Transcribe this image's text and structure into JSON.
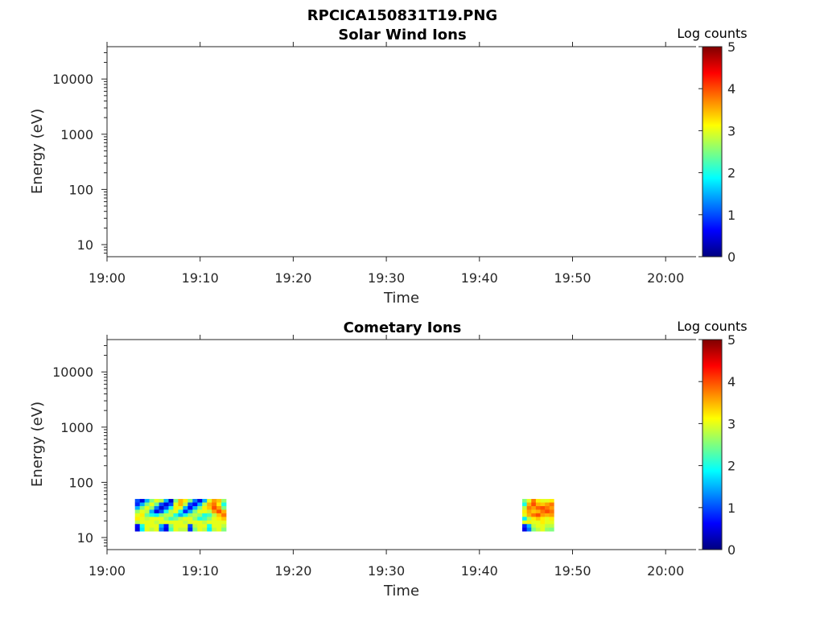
{
  "figure_title": "RPCICA150831T19.PNG",
  "colormap": [
    "#00007f",
    "#0000ff",
    "#007fff",
    "#00ffff",
    "#7fff7f",
    "#ffff00",
    "#ff7f00",
    "#ff0000",
    "#7f0000"
  ],
  "chart_data": [
    {
      "type": "heatmap",
      "title": "Solar Wind Ions",
      "xlabel": "Time",
      "ylabel": "Energy (eV)",
      "x_ticks": [
        "19:00",
        "19:10",
        "19:20",
        "19:30",
        "19:40",
        "19:50",
        "20:00"
      ],
      "y_ticks": [
        "10",
        "100",
        "1000",
        "10000"
      ],
      "y_scale": "log",
      "colorbar": {
        "label": "Log counts",
        "ticks": [
          "0",
          "1",
          "2",
          "3",
          "4",
          "5"
        ],
        "range": [
          0,
          5
        ]
      },
      "blocks": []
    },
    {
      "type": "heatmap",
      "title": "Cometary Ions",
      "xlabel": "Time",
      "ylabel": "Energy (eV)",
      "x_ticks": [
        "19:00",
        "19:10",
        "19:20",
        "19:30",
        "19:40",
        "19:50",
        "20:00"
      ],
      "y_ticks": [
        "10",
        "100",
        "1000",
        "10000"
      ],
      "y_scale": "log",
      "colorbar": {
        "label": "Log counts",
        "ticks": [
          "0",
          "1",
          "2",
          "3",
          "4",
          "5"
        ],
        "range": [
          0,
          5
        ]
      },
      "blocks": [
        {
          "t_start_min": 3.0,
          "t_end_min": 12.8,
          "energy_range_eV": [
            13,
            50
          ],
          "log_counts": [
            [
              1.0,
              0.5,
              1.5,
              2.5,
              3.0,
              2.8,
              1.5,
              0.4,
              2.5,
              3.5,
              3.2,
              2.5,
              1.2,
              0.5,
              1.5,
              3.0,
              3.6,
              3.4,
              2.6
            ],
            [
              0.8,
              1.5,
              2.5,
              3.0,
              2.4,
              1.0,
              0.5,
              1.0,
              3.0,
              3.5,
              2.8,
              1.0,
              0.6,
              1.5,
              2.8,
              3.5,
              3.8,
              3.2,
              2.0
            ],
            [
              1.5,
              2.5,
              3.0,
              2.6,
              1.2,
              0.4,
              1.0,
              2.0,
              3.2,
              3.0,
              1.5,
              0.6,
              1.5,
              2.5,
              3.2,
              3.4,
              4.0,
              3.6,
              2.5
            ],
            [
              2.6,
              3.0,
              2.8,
              1.5,
              0.5,
              1.0,
              2.0,
              2.8,
              3.0,
              2.0,
              0.8,
              1.5,
              2.5,
              3.0,
              3.0,
              2.8,
              3.6,
              4.0,
              3.5
            ],
            [
              3.0,
              3.2,
              2.4,
              2.0,
              1.8,
              2.5,
              2.8,
              2.8,
              2.0,
              1.5,
              2.0,
              2.6,
              2.8,
              2.6,
              2.0,
              2.2,
              2.8,
              3.4,
              3.8
            ],
            [
              3.2,
              3.0,
              2.8,
              3.0,
              3.0,
              3.0,
              2.6,
              2.2,
              2.4,
              2.8,
              3.0,
              3.0,
              2.6,
              2.0,
              2.2,
              2.6,
              3.0,
              3.2,
              3.4
            ],
            [
              2.8,
              3.0,
              3.0,
              3.0,
              2.8,
              3.0,
              3.0,
              3.0,
              3.0,
              3.0,
              2.8,
              3.0,
              3.0,
              3.0,
              2.8,
              3.0,
              3.0,
              3.0,
              3.0
            ],
            [
              0.6,
              2.0,
              3.0,
              3.0,
              3.0,
              1.5,
              0.7,
              2.5,
              3.0,
              3.0,
              3.0,
              1.0,
              2.8,
              3.0,
              3.0,
              2.0,
              3.0,
              3.0,
              2.8
            ],
            [
              0.5,
              1.8,
              3.0,
              2.8,
              3.0,
              1.2,
              0.5,
              2.2,
              3.0,
              2.8,
              2.8,
              0.8,
              2.5,
              3.0,
              2.8,
              1.8,
              2.8,
              3.0,
              2.5
            ]
          ]
        },
        {
          "t_start_min": 44.6,
          "t_end_min": 48.0,
          "energy_range_eV": [
            13,
            50
          ],
          "log_counts": [
            [
              2.5,
              3.0,
              3.8,
              3.2,
              3.0,
              3.0,
              3.2
            ],
            [
              2.0,
              3.5,
              4.0,
              3.5,
              3.4,
              3.6,
              3.8
            ],
            [
              2.8,
              3.8,
              3.6,
              3.9,
              4.0,
              3.8,
              3.6
            ],
            [
              3.2,
              3.6,
              3.4,
              3.5,
              3.8,
              4.0,
              3.8
            ],
            [
              3.0,
              3.5,
              3.8,
              4.0,
              3.6,
              3.5,
              3.6
            ],
            [
              1.8,
              2.8,
              3.2,
              3.4,
              3.2,
              3.0,
              3.2
            ],
            [
              3.0,
              3.2,
              3.0,
              3.0,
              3.2,
              3.0,
              3.0
            ],
            [
              0.8,
              1.5,
              2.8,
              3.0,
              3.0,
              2.8,
              2.8
            ],
            [
              0.5,
              1.2,
              2.5,
              2.8,
              3.0,
              2.6,
              2.5
            ]
          ]
        }
      ]
    }
  ]
}
